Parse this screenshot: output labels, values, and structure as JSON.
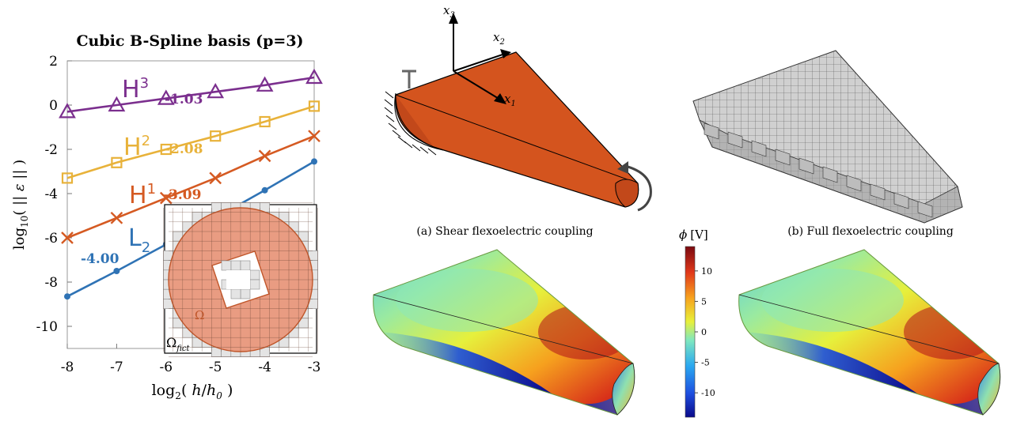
{
  "chart_data": [
    {
      "type": "line",
      "title": "Cubic B-Spline basis (p=3)",
      "xlabel": "log2( h/h0 )",
      "ylabel": "log10( || ε || )",
      "xlim": [
        -8,
        -3
      ],
      "ylim": [
        -11,
        2
      ],
      "x_ticks": [
        "-8",
        "-7",
        "-6",
        "-5",
        "-4",
        "-3"
      ],
      "y_ticks": [
        "2",
        "0",
        "-2",
        "-4",
        "-6",
        "-8",
        "-10"
      ],
      "grid": false,
      "series": [
        {
          "name": "H3",
          "marker": "triangle",
          "color": "#7b2f8e",
          "x": [
            -8,
            -7,
            -6,
            -5,
            -4,
            -3
          ],
          "y": [
            -0.3,
            0.0,
            0.3,
            0.6,
            0.9,
            1.25
          ],
          "slope_label": "-1.03"
        },
        {
          "name": "H2",
          "marker": "square",
          "color": "#e8b23a",
          "x": [
            -8,
            -7,
            -6,
            -5,
            -4,
            -3
          ],
          "y": [
            -3.3,
            -2.6,
            -2.0,
            -1.4,
            -0.75,
            -0.05
          ],
          "slope_label": "-2.08"
        },
        {
          "name": "H1",
          "marker": "x",
          "color": "#d55a22",
          "x": [
            -8,
            -7,
            -6,
            -5,
            -4,
            -3
          ],
          "y": [
            -6.0,
            -5.1,
            -4.2,
            -3.3,
            -2.3,
            -1.4
          ],
          "slope_label": "-3.09"
        },
        {
          "name": "L2",
          "marker": "dot",
          "color": "#2f73b5",
          "x": [
            -8,
            -7,
            -6,
            -5,
            -4,
            -3
          ],
          "y": [
            -8.65,
            -7.5,
            -6.3,
            -5.1,
            -3.85,
            -2.55
          ],
          "slope_label": "-4.00"
        }
      ],
      "inset": {
        "domain_label": "Ω",
        "fictitious_label": "Ω",
        "fictitious_subscript": "fict"
      }
    },
    {
      "type": "heatmap",
      "colorbar_label": "ϕ [V]",
      "colorbar_ticks": [
        "10",
        "5",
        "0",
        "-5",
        "-10"
      ],
      "colorbar_range": [
        -14,
        14
      ],
      "colormap": [
        "#0a0a8a",
        "#1e4fe0",
        "#2aa8f0",
        "#7fe7c0",
        "#e8f03a",
        "#f7a21e",
        "#e0371a",
        "#7a0a10"
      ]
    }
  ],
  "figure_a": {
    "caption": "(a) Shear flexoelectric coupling",
    "axis_x1": "x",
    "axis_x1_sub": "1",
    "axis_x2": "x",
    "axis_x2_sub": "2",
    "axis_x3": "x",
    "axis_x3_sub": "3",
    "body_color": "#d4541e",
    "ground_symbol": "ground-icon",
    "torque_symbol": "torque-arrow-icon"
  },
  "figure_b": {
    "caption": "(b) Full flexoelectric coupling",
    "mesh_color": "#cfcfcf"
  }
}
